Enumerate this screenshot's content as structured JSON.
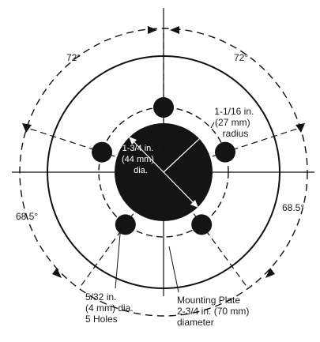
{
  "diagram": {
    "angles": {
      "top_left": "72°",
      "top_right": "72°",
      "left": "68.5°",
      "right": "68.5°"
    },
    "bolt_circle": [
      "1-1/16 in.",
      "(27 mm)",
      "radius"
    ],
    "center_hole": [
      "1-3/4 in.",
      "(44 mm)",
      "dia."
    ],
    "holes_label": [
      "5/32 in.",
      "(4 mm) dia.",
      "5 Holes"
    ],
    "plate_label": [
      "Mounting Plate",
      "2-3/4 in. (70 mm)",
      "diameter"
    ],
    "hole_count": 5,
    "colors": {
      "ink": "#111111",
      "fill": "#141414"
    }
  }
}
